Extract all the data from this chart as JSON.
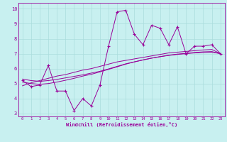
{
  "xlabel": "Windchill (Refroidissement éolien,°C)",
  "bg_color": "#c8f0f0",
  "line_color": "#990099",
  "grid_color": "#aadddd",
  "xlim": [
    -0.5,
    23.5
  ],
  "ylim": [
    2.8,
    10.4
  ],
  "xticks": [
    0,
    1,
    2,
    3,
    4,
    5,
    6,
    7,
    8,
    9,
    10,
    11,
    12,
    13,
    14,
    15,
    16,
    17,
    18,
    19,
    20,
    21,
    22,
    23
  ],
  "yticks": [
    3,
    4,
    5,
    6,
    7,
    8,
    9,
    10
  ],
  "main_y": [
    5.2,
    4.8,
    4.9,
    6.2,
    4.5,
    4.5,
    3.2,
    4.0,
    3.5,
    4.9,
    7.5,
    9.8,
    9.9,
    8.3,
    7.6,
    8.9,
    8.7,
    7.6,
    8.8,
    7.0,
    7.5,
    7.5,
    7.6,
    7.0
  ],
  "reg1_y": [
    4.85,
    5.05,
    5.2,
    5.35,
    5.5,
    5.6,
    5.75,
    5.9,
    6.0,
    6.15,
    6.3,
    6.45,
    6.55,
    6.65,
    6.75,
    6.85,
    6.95,
    7.05,
    7.1,
    7.15,
    7.2,
    7.25,
    7.28,
    7.0
  ],
  "reg2_y": [
    5.3,
    5.2,
    5.15,
    5.2,
    5.28,
    5.38,
    5.48,
    5.58,
    5.7,
    5.82,
    5.98,
    6.15,
    6.32,
    6.45,
    6.58,
    6.7,
    6.8,
    6.88,
    6.95,
    7.0,
    7.05,
    7.08,
    7.1,
    7.0
  ],
  "reg3_y": [
    5.1,
    5.0,
    4.95,
    5.0,
    5.1,
    5.22,
    5.35,
    5.5,
    5.62,
    5.78,
    5.95,
    6.12,
    6.3,
    6.45,
    6.58,
    6.7,
    6.8,
    6.9,
    6.97,
    7.02,
    7.08,
    7.12,
    7.14,
    7.0
  ]
}
